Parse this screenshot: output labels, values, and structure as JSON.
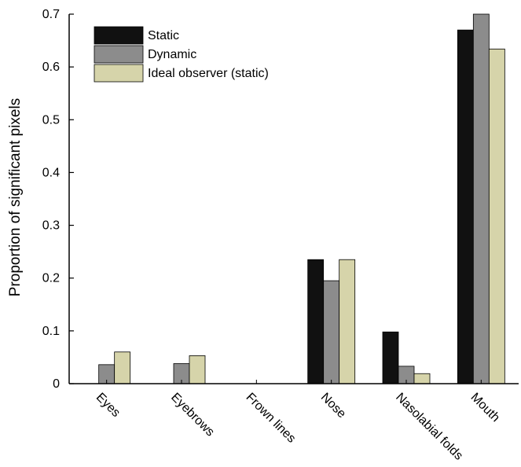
{
  "chart_data": {
    "type": "bar",
    "title": "",
    "xlabel": "",
    "ylabel": "Proportion of significant pixels",
    "ylim": [
      0,
      0.7
    ],
    "yticks": [
      0,
      0.1,
      0.2,
      0.3,
      0.4,
      0.5,
      0.6,
      0.7
    ],
    "ytick_labels": [
      "0",
      "0.1",
      "0.2",
      "0.3",
      "0.4",
      "0.5",
      "0.6",
      "0.7"
    ],
    "categories": [
      "Eyes",
      "Eyebrows",
      "Frown lines",
      "Nose",
      "Nasolabial folds",
      "Mouth"
    ],
    "series": [
      {
        "name": "Static",
        "color": "#111111",
        "values": [
          0.0,
          0.0,
          0.0,
          0.235,
          0.098,
          0.67
        ]
      },
      {
        "name": "Dynamic",
        "color": "#8c8c8c",
        "values": [
          0.036,
          0.038,
          0.0,
          0.195,
          0.033,
          0.7
        ]
      },
      {
        "name": "Ideal observer (static)",
        "color": "#d6d4aa",
        "values": [
          0.06,
          0.053,
          0.0,
          0.235,
          0.019,
          0.634
        ]
      }
    ],
    "grid": false,
    "legend_position": "top-left"
  }
}
